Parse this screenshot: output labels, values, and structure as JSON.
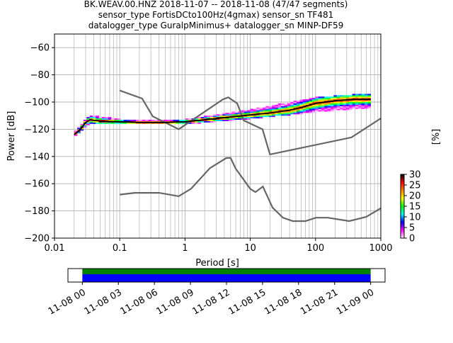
{
  "figure": {
    "title_lines": [
      "BK.WEAV.00.HNZ   2018-11-07 -- 2018-11-08  (47/47 segments)",
      "sensor_type FortisDCto100Hz(4gmax) sensor_sn TF481",
      "datalogger_type GuralpMinimus+ datalogger_sn MINP-DF59"
    ]
  },
  "chart_data": [
    {
      "type": "heatmap",
      "title": "",
      "xlabel": "Period [s]",
      "ylabel": "Power [dB]",
      "x_scale": "log",
      "xlim": [
        0.01,
        1000
      ],
      "ylim": [
        -200,
        -50
      ],
      "x_ticks": [
        0.01,
        0.1,
        1,
        10,
        100,
        1000
      ],
      "x_tick_labels": [
        "0.01",
        "0.1",
        "1",
        "10",
        "100",
        "1000"
      ],
      "y_ticks": [
        -200,
        -180,
        -160,
        -140,
        -120,
        -100,
        -80,
        -60
      ],
      "y_tick_labels": [
        "−200",
        "−180",
        "−160",
        "−140",
        "−120",
        "−100",
        "−80",
        "−60"
      ],
      "grid": true,
      "colorbar": {
        "label": "[%]",
        "range": [
          0,
          30
        ],
        "ticks": [
          0,
          5,
          10,
          15,
          20,
          25,
          30
        ],
        "colors": [
          "#ffffff",
          "#ff00ff",
          "#0000ff",
          "#00ffff",
          "#00ff00",
          "#ffff00",
          "#ff8000",
          "#ff0000",
          "#000000"
        ]
      },
      "noise_models": [
        {
          "period": [
            0.1,
            0.22,
            0.32,
            0.8,
            3.8,
            4.6,
            6.3,
            7.9,
            15.4,
            20,
            354.8,
            1000
          ],
          "power": [
            -91.5,
            -97.4,
            -110.5,
            -120.0,
            -98.0,
            -96.5,
            -101.0,
            -113.5,
            -120.0,
            -138.5,
            -126.0,
            -112.0
          ]
        },
        {
          "period": [
            0.1,
            0.17,
            0.4,
            0.8,
            1.24,
            2.4,
            4.3,
            5.0,
            6.0,
            10.0,
            12.0,
            15.6,
            21.9,
            31.6,
            45.0,
            70.0,
            101.0,
            154.0,
            328.0,
            600.0,
            1000.0
          ],
          "power": [
            -168.0,
            -166.7,
            -166.7,
            -169.2,
            -163.7,
            -148.6,
            -141.1,
            -141.1,
            -149.0,
            -163.8,
            -166.2,
            -162.1,
            -177.5,
            -185.0,
            -187.5,
            -187.5,
            -185.0,
            -185.0,
            -187.5,
            -184.4,
            -178.0
          ]
        }
      ],
      "mean_curve": {
        "period": [
          0.02,
          0.025,
          0.03,
          0.035,
          0.05,
          0.1,
          0.2,
          0.5,
          1,
          2,
          5,
          10,
          20,
          40,
          60,
          100,
          200,
          400,
          700
        ],
        "power": [
          -124,
          -120,
          -115,
          -113,
          -114,
          -114.5,
          -115,
          -115,
          -114.5,
          -113,
          -111,
          -109.5,
          -108,
          -106,
          -104,
          -101,
          -99,
          -98,
          -98
        ]
      },
      "density_spread_db": [
        {
          "period": 0.02,
          "low": -126,
          "high": -123
        },
        {
          "period": 0.03,
          "low": -118,
          "high": -113
        },
        {
          "period": 0.035,
          "low": -116,
          "high": -110
        },
        {
          "period": 0.1,
          "low": -116,
          "high": -113
        },
        {
          "period": 1,
          "low": -116,
          "high": -113
        },
        {
          "period": 10,
          "low": -112,
          "high": -106
        },
        {
          "period": 100,
          "low": -107,
          "high": -97
        },
        {
          "period": 700,
          "low": -104,
          "high": -94
        }
      ]
    },
    {
      "type": "timeline",
      "x_tick_labels": [
        "11-08 00",
        "11-08 03",
        "11-08 06",
        "11-08 09",
        "11-08 12",
        "11-08 15",
        "11-08 18",
        "11-08 21",
        "11-09 00"
      ],
      "xlim_hours": [
        -1.2,
        25.2
      ],
      "coverage_hours": [
        0,
        24.0
      ],
      "colors": {
        "top_band": "#008000",
        "bottom_band": "#0000ff"
      }
    }
  ]
}
